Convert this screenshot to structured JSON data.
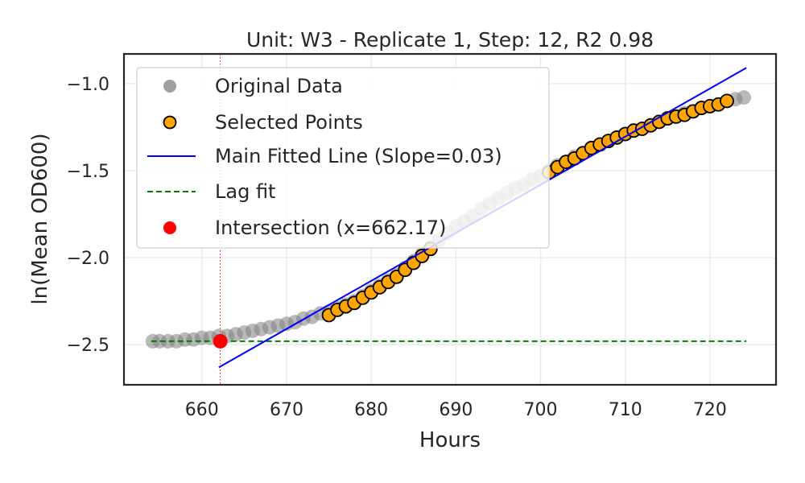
{
  "chart_data": {
    "type": "scatter",
    "title": "Unit: W3 - Replicate 1, Step: 12, R2 0.98",
    "xlabel": "Hours",
    "ylabel": "ln(Mean OD600)",
    "xlim": [
      650.8,
      727.8
    ],
    "ylim": [
      -2.73,
      -0.83
    ],
    "x_ticks": [
      660,
      670,
      680,
      690,
      700,
      710,
      720
    ],
    "y_ticks": [
      -2.5,
      -2.0,
      -1.5,
      -1.0
    ],
    "x_tick_labels": [
      "660",
      "670",
      "680",
      "690",
      "700",
      "710",
      "720"
    ],
    "y_tick_labels": [
      "−2.5",
      "−2.0",
      "−1.5",
      "−1.0"
    ],
    "grid": true,
    "legend_position": "top-left",
    "legend": [
      {
        "label": "Original Data",
        "marker": "circle",
        "color": "#808080"
      },
      {
        "label": "Selected Points",
        "marker": "circle",
        "color": "#ffa500",
        "edge": "#000000"
      },
      {
        "label": "Main Fitted Line (Slope=0.03)",
        "marker": "line",
        "color": "#0000ff"
      },
      {
        "label": "Lag fit",
        "marker": "dashed-line",
        "color": "#008000"
      },
      {
        "label": "Intersection (x=662.17)",
        "marker": "circle",
        "color": "#ff0000"
      }
    ],
    "series": [
      {
        "name": "Original Data",
        "color": "#808080",
        "x": [
          654.2,
          655.0,
          656.0,
          657.0,
          658.0,
          659.0,
          660.0,
          661.0,
          662.0,
          663.0,
          664.0,
          665.0,
          666.0,
          667.0,
          668.0,
          669.0,
          670.0,
          671.0,
          672.0,
          673.0,
          674.0,
          675.0,
          676.0,
          677.0,
          678.0,
          679.0,
          680.0,
          681.0,
          682.0,
          683.0,
          684.0,
          685.0,
          686.0,
          687.0,
          688.0,
          689.0,
          690.0,
          691.0,
          692.0,
          693.0,
          694.0,
          695.0,
          696.0,
          697.0,
          698.0,
          699.0,
          700.0,
          701.0,
          702.0,
          703.0,
          704.0,
          705.0,
          706.0,
          707.0,
          708.0,
          709.0,
          710.0,
          711.0,
          712.0,
          713.0,
          714.0,
          715.0,
          716.0,
          717.0,
          718.0,
          719.0,
          720.0,
          721.0,
          722.0,
          723.0,
          724.0
        ],
        "y": [
          -2.48,
          -2.48,
          -2.48,
          -2.48,
          -2.47,
          -2.47,
          -2.46,
          -2.46,
          -2.45,
          -2.45,
          -2.44,
          -2.43,
          -2.42,
          -2.41,
          -2.4,
          -2.39,
          -2.38,
          -2.37,
          -2.35,
          -2.34,
          -2.32,
          -2.31,
          -2.29,
          -2.27,
          -2.25,
          -2.22,
          -2.19,
          -2.16,
          -2.13,
          -2.1,
          -2.06,
          -2.02,
          -1.98,
          -1.94,
          -1.9,
          -1.86,
          -1.82,
          -1.79,
          -1.76,
          -1.72,
          -1.69,
          -1.66,
          -1.63,
          -1.6,
          -1.58,
          -1.55,
          -1.53,
          -1.5,
          -1.47,
          -1.45,
          -1.42,
          -1.4,
          -1.37,
          -1.35,
          -1.33,
          -1.31,
          -1.29,
          -1.27,
          -1.26,
          -1.24,
          -1.22,
          -1.2,
          -1.19,
          -1.17,
          -1.16,
          -1.14,
          -1.13,
          -1.12,
          -1.1,
          -1.09,
          -1.08
        ]
      },
      {
        "name": "Selected Points",
        "color": "#ffa500",
        "edge": "#000000",
        "x": [
          675.0,
          676.0,
          677.0,
          678.0,
          679.0,
          680.0,
          681.0,
          682.0,
          683.0,
          684.0,
          685.0,
          686.0,
          687.0,
          701.0,
          702.0,
          703.0,
          704.0,
          705.0,
          706.0,
          707.0,
          708.0,
          709.0,
          710.0,
          711.0,
          712.0,
          713.0,
          714.0,
          715.0,
          716.0,
          717.0,
          718.0,
          719.0,
          720.0,
          721.0,
          722.0
        ],
        "y": [
          -2.33,
          -2.3,
          -2.28,
          -2.26,
          -2.23,
          -2.2,
          -2.17,
          -2.14,
          -2.11,
          -2.07,
          -2.03,
          -1.99,
          -1.95,
          -1.51,
          -1.48,
          -1.45,
          -1.43,
          -1.4,
          -1.37,
          -1.35,
          -1.33,
          -1.31,
          -1.29,
          -1.27,
          -1.26,
          -1.24,
          -1.22,
          -1.2,
          -1.19,
          -1.18,
          -1.16,
          -1.14,
          -1.13,
          -1.12,
          -1.1
        ]
      },
      {
        "name": "Main Fitted Line (Slope=0.03)",
        "color": "#0000ff",
        "x": [
          662.0,
          724.3
        ],
        "y": [
          -2.63,
          -0.91
        ]
      },
      {
        "name": "Lag fit",
        "color": "#008000",
        "x": [
          654.0,
          724.3
        ],
        "y": [
          -2.48,
          -2.48
        ]
      },
      {
        "name": "Intersection (x=662.17)",
        "color": "#ff0000",
        "x": [
          662.17
        ],
        "y": [
          -2.48
        ]
      }
    ],
    "vline": {
      "x": 662.17,
      "color": "#ff0000"
    }
  }
}
